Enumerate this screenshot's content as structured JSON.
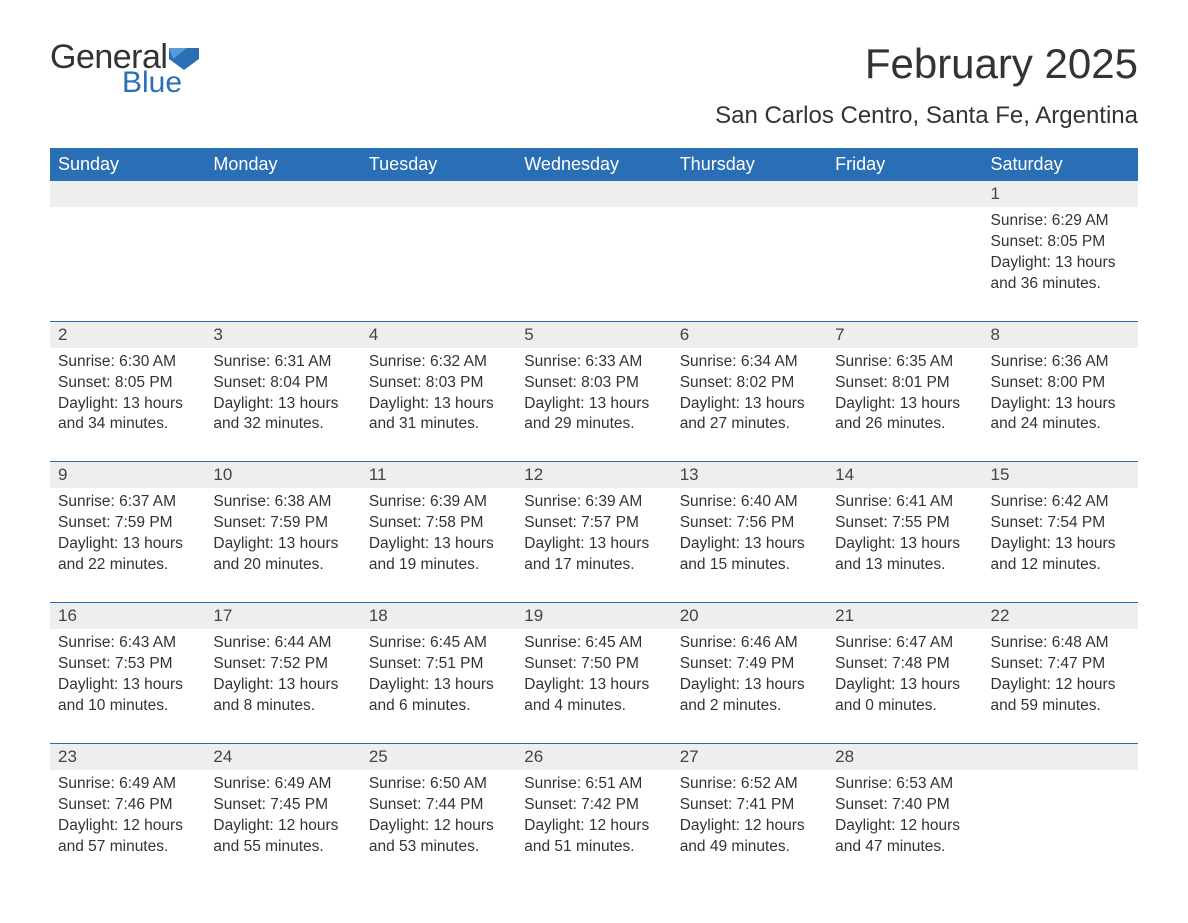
{
  "logo": {
    "word1": "General",
    "word2": "Blue",
    "icon_color": "#2a6fb5",
    "text_color1": "#333333",
    "text_color2": "#2a6fb5"
  },
  "title": "February 2025",
  "subtitle": "San Carlos Centro, Santa Fe, Argentina",
  "colors": {
    "header_bg": "#2a6fb5",
    "header_text": "#ffffff",
    "daynum_bg": "#eeeeee",
    "week_border": "#2a6fb5",
    "body_bg": "#ffffff",
    "text": "#333333"
  },
  "fonts": {
    "title_size": 42,
    "subtitle_size": 24,
    "header_size": 18,
    "cell_size": 15.5
  },
  "day_headers": [
    "Sunday",
    "Monday",
    "Tuesday",
    "Wednesday",
    "Thursday",
    "Friday",
    "Saturday"
  ],
  "weeks": [
    [
      {
        "n": "",
        "sunrise": "",
        "sunset": "",
        "daylight": ""
      },
      {
        "n": "",
        "sunrise": "",
        "sunset": "",
        "daylight": ""
      },
      {
        "n": "",
        "sunrise": "",
        "sunset": "",
        "daylight": ""
      },
      {
        "n": "",
        "sunrise": "",
        "sunset": "",
        "daylight": ""
      },
      {
        "n": "",
        "sunrise": "",
        "sunset": "",
        "daylight": ""
      },
      {
        "n": "",
        "sunrise": "",
        "sunset": "",
        "daylight": ""
      },
      {
        "n": "1",
        "sunrise": "Sunrise: 6:29 AM",
        "sunset": "Sunset: 8:05 PM",
        "daylight": "Daylight: 13 hours and 36 minutes."
      }
    ],
    [
      {
        "n": "2",
        "sunrise": "Sunrise: 6:30 AM",
        "sunset": "Sunset: 8:05 PM",
        "daylight": "Daylight: 13 hours and 34 minutes."
      },
      {
        "n": "3",
        "sunrise": "Sunrise: 6:31 AM",
        "sunset": "Sunset: 8:04 PM",
        "daylight": "Daylight: 13 hours and 32 minutes."
      },
      {
        "n": "4",
        "sunrise": "Sunrise: 6:32 AM",
        "sunset": "Sunset: 8:03 PM",
        "daylight": "Daylight: 13 hours and 31 minutes."
      },
      {
        "n": "5",
        "sunrise": "Sunrise: 6:33 AM",
        "sunset": "Sunset: 8:03 PM",
        "daylight": "Daylight: 13 hours and 29 minutes."
      },
      {
        "n": "6",
        "sunrise": "Sunrise: 6:34 AM",
        "sunset": "Sunset: 8:02 PM",
        "daylight": "Daylight: 13 hours and 27 minutes."
      },
      {
        "n": "7",
        "sunrise": "Sunrise: 6:35 AM",
        "sunset": "Sunset: 8:01 PM",
        "daylight": "Daylight: 13 hours and 26 minutes."
      },
      {
        "n": "8",
        "sunrise": "Sunrise: 6:36 AM",
        "sunset": "Sunset: 8:00 PM",
        "daylight": "Daylight: 13 hours and 24 minutes."
      }
    ],
    [
      {
        "n": "9",
        "sunrise": "Sunrise: 6:37 AM",
        "sunset": "Sunset: 7:59 PM",
        "daylight": "Daylight: 13 hours and 22 minutes."
      },
      {
        "n": "10",
        "sunrise": "Sunrise: 6:38 AM",
        "sunset": "Sunset: 7:59 PM",
        "daylight": "Daylight: 13 hours and 20 minutes."
      },
      {
        "n": "11",
        "sunrise": "Sunrise: 6:39 AM",
        "sunset": "Sunset: 7:58 PM",
        "daylight": "Daylight: 13 hours and 19 minutes."
      },
      {
        "n": "12",
        "sunrise": "Sunrise: 6:39 AM",
        "sunset": "Sunset: 7:57 PM",
        "daylight": "Daylight: 13 hours and 17 minutes."
      },
      {
        "n": "13",
        "sunrise": "Sunrise: 6:40 AM",
        "sunset": "Sunset: 7:56 PM",
        "daylight": "Daylight: 13 hours and 15 minutes."
      },
      {
        "n": "14",
        "sunrise": "Sunrise: 6:41 AM",
        "sunset": "Sunset: 7:55 PM",
        "daylight": "Daylight: 13 hours and 13 minutes."
      },
      {
        "n": "15",
        "sunrise": "Sunrise: 6:42 AM",
        "sunset": "Sunset: 7:54 PM",
        "daylight": "Daylight: 13 hours and 12 minutes."
      }
    ],
    [
      {
        "n": "16",
        "sunrise": "Sunrise: 6:43 AM",
        "sunset": "Sunset: 7:53 PM",
        "daylight": "Daylight: 13 hours and 10 minutes."
      },
      {
        "n": "17",
        "sunrise": "Sunrise: 6:44 AM",
        "sunset": "Sunset: 7:52 PM",
        "daylight": "Daylight: 13 hours and 8 minutes."
      },
      {
        "n": "18",
        "sunrise": "Sunrise: 6:45 AM",
        "sunset": "Sunset: 7:51 PM",
        "daylight": "Daylight: 13 hours and 6 minutes."
      },
      {
        "n": "19",
        "sunrise": "Sunrise: 6:45 AM",
        "sunset": "Sunset: 7:50 PM",
        "daylight": "Daylight: 13 hours and 4 minutes."
      },
      {
        "n": "20",
        "sunrise": "Sunrise: 6:46 AM",
        "sunset": "Sunset: 7:49 PM",
        "daylight": "Daylight: 13 hours and 2 minutes."
      },
      {
        "n": "21",
        "sunrise": "Sunrise: 6:47 AM",
        "sunset": "Sunset: 7:48 PM",
        "daylight": "Daylight: 13 hours and 0 minutes."
      },
      {
        "n": "22",
        "sunrise": "Sunrise: 6:48 AM",
        "sunset": "Sunset: 7:47 PM",
        "daylight": "Daylight: 12 hours and 59 minutes."
      }
    ],
    [
      {
        "n": "23",
        "sunrise": "Sunrise: 6:49 AM",
        "sunset": "Sunset: 7:46 PM",
        "daylight": "Daylight: 12 hours and 57 minutes."
      },
      {
        "n": "24",
        "sunrise": "Sunrise: 6:49 AM",
        "sunset": "Sunset: 7:45 PM",
        "daylight": "Daylight: 12 hours and 55 minutes."
      },
      {
        "n": "25",
        "sunrise": "Sunrise: 6:50 AM",
        "sunset": "Sunset: 7:44 PM",
        "daylight": "Daylight: 12 hours and 53 minutes."
      },
      {
        "n": "26",
        "sunrise": "Sunrise: 6:51 AM",
        "sunset": "Sunset: 7:42 PM",
        "daylight": "Daylight: 12 hours and 51 minutes."
      },
      {
        "n": "27",
        "sunrise": "Sunrise: 6:52 AM",
        "sunset": "Sunset: 7:41 PM",
        "daylight": "Daylight: 12 hours and 49 minutes."
      },
      {
        "n": "28",
        "sunrise": "Sunrise: 6:53 AM",
        "sunset": "Sunset: 7:40 PM",
        "daylight": "Daylight: 12 hours and 47 minutes."
      },
      {
        "n": "",
        "sunrise": "",
        "sunset": "",
        "daylight": ""
      }
    ]
  ]
}
